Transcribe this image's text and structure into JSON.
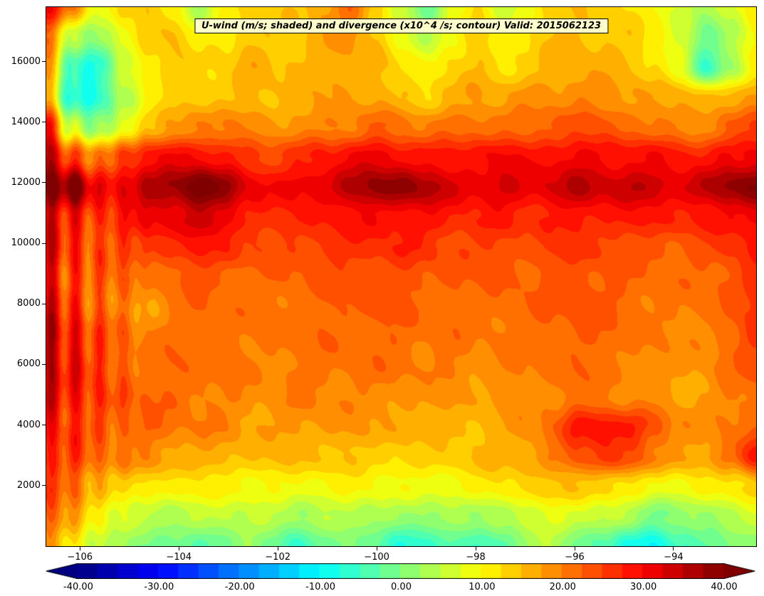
{
  "figure": {
    "background": "#ffffff",
    "title_box_bg": "#ffffcc",
    "axis_color": "#000000"
  },
  "chart_data": {
    "type": "heatmap",
    "title": "U-wind (m/s; shaded) and divergence (x10^4 /s; contour) Valid: 2015062123",
    "shaded_variable": "U-wind (m/s)",
    "contour_variable": "divergence (x10^4 /s)",
    "valid_time": "2015062123",
    "xlabel": "",
    "ylabel": "",
    "grid": false,
    "x_axis": {
      "min": -106.68,
      "max": -92.33,
      "ticks": [
        {
          "value": -106,
          "label": "−106"
        },
        {
          "value": -104,
          "label": "−104"
        },
        {
          "value": -102,
          "label": "−102"
        },
        {
          "value": -100,
          "label": "−100"
        },
        {
          "value": -98,
          "label": "−98"
        },
        {
          "value": -96,
          "label": "−96"
        },
        {
          "value": -94,
          "label": "−94"
        }
      ]
    },
    "y_axis": {
      "min": 0,
      "max": 17800,
      "ticks": [
        {
          "value": 2000,
          "label": "2000"
        },
        {
          "value": 4000,
          "label": "4000"
        },
        {
          "value": 6000,
          "label": "6000"
        },
        {
          "value": 8000,
          "label": "8000"
        },
        {
          "value": 10000,
          "label": "10000"
        },
        {
          "value": 12000,
          "label": "12000"
        },
        {
          "value": 14000,
          "label": "14000"
        },
        {
          "value": 16000,
          "label": "16000"
        }
      ]
    },
    "colormap": {
      "name": "jet",
      "level_min": -40,
      "level_max": 40,
      "level_step": 2.5,
      "extend": "both",
      "below_color": "#00007f",
      "above_color": "#7f0000"
    },
    "colorbar": {
      "orientation": "horizontal",
      "ticks": [
        {
          "value": -40,
          "label": "-40.00"
        },
        {
          "value": -30,
          "label": "-30.00"
        },
        {
          "value": -20,
          "label": "-20.00"
        },
        {
          "value": -10,
          "label": "-10.00"
        },
        {
          "value": 0,
          "label": "0.00"
        },
        {
          "value": 10,
          "label": "10.00"
        },
        {
          "value": 20,
          "label": "20.00"
        },
        {
          "value": 30,
          "label": "30.00"
        },
        {
          "value": 40,
          "label": "40.00"
        }
      ]
    },
    "field": {
      "units": "m/s",
      "nx": 29,
      "ny": 19,
      "x_min": -106.68,
      "x_max": -92.33,
      "y_min": 0,
      "y_max": 17800,
      "rows_order": "bottom-to-top",
      "values": [
        [
          18,
          12,
          6,
          2,
          0,
          -2,
          -4,
          0,
          2,
          -1,
          -6,
          -2,
          0,
          -3,
          -8,
          -5,
          -2,
          -6,
          -3,
          2,
          4,
          0,
          -4,
          -8,
          -10,
          -6,
          -3,
          0,
          2
        ],
        [
          22,
          18,
          10,
          6,
          5,
          4,
          5,
          6,
          5,
          4,
          3,
          4,
          5,
          4,
          2,
          2,
          3,
          2,
          4,
          7,
          8,
          7,
          5,
          3,
          0,
          1,
          3,
          5,
          6
        ],
        [
          24,
          22,
          17,
          13,
          12,
          11,
          11,
          11,
          10,
          10,
          10,
          10,
          10,
          10,
          9,
          9,
          10,
          11,
          12,
          13,
          14,
          15,
          14,
          12,
          10,
          9,
          10,
          12,
          14
        ],
        [
          26,
          25,
          22,
          20,
          19,
          18,
          17,
          16,
          15,
          15,
          15,
          15,
          15,
          14,
          14,
          13,
          14,
          15,
          16,
          18,
          20,
          24,
          26,
          24,
          20,
          18,
          17,
          22,
          30
        ],
        [
          28,
          26,
          24,
          23,
          22,
          21,
          20,
          19,
          18,
          18,
          18,
          18,
          18,
          17,
          17,
          16,
          16,
          16,
          17,
          19,
          22,
          28,
          30,
          28,
          24,
          20,
          18,
          20,
          22
        ],
        [
          33,
          28,
          25,
          24,
          22,
          22,
          21,
          20,
          19,
          19,
          20,
          20,
          20,
          19,
          19,
          18,
          18,
          17,
          18,
          19,
          20,
          21,
          20,
          19,
          18,
          17,
          18,
          20,
          22
        ],
        [
          32,
          30,
          25,
          23,
          21,
          22,
          22,
          21,
          20,
          20,
          21,
          21,
          21,
          21,
          21,
          20,
          20,
          19,
          20,
          20,
          21,
          22,
          21,
          20,
          19,
          18,
          19,
          21,
          23
        ],
        [
          33,
          30,
          24,
          22,
          20,
          21,
          22,
          21,
          20,
          21,
          21,
          22,
          22,
          22,
          22,
          21,
          21,
          20,
          21,
          21,
          22,
          23,
          22,
          21,
          20,
          19,
          20,
          22,
          26
        ],
        [
          30,
          26,
          22,
          20,
          18,
          20,
          22,
          22,
          21,
          21,
          22,
          22,
          23,
          23,
          23,
          22,
          22,
          21,
          22,
          22,
          23,
          24,
          23,
          22,
          21,
          20,
          21,
          23,
          25
        ],
        [
          28,
          25,
          23,
          22,
          20,
          22,
          24,
          23,
          22,
          22,
          23,
          23,
          24,
          24,
          24,
          23,
          23,
          22,
          23,
          22,
          23,
          24,
          23,
          22,
          22,
          21,
          22,
          24,
          26
        ],
        [
          30,
          26,
          24,
          25,
          26,
          27,
          28,
          27,
          25,
          24,
          25,
          26,
          26,
          27,
          27,
          26,
          25,
          25,
          25,
          24,
          25,
          26,
          25,
          24,
          24,
          23,
          24,
          26,
          28
        ],
        [
          32,
          28,
          26,
          28,
          30,
          32,
          34,
          32,
          28,
          26,
          27,
          28,
          29,
          30,
          30,
          29,
          28,
          27,
          28,
          27,
          28,
          29,
          28,
          28,
          28,
          27,
          28,
          30,
          32
        ],
        [
          38,
          42,
          30,
          32,
          36,
          38,
          43,
          38,
          32,
          30,
          31,
          33,
          36,
          38,
          39,
          36,
          33,
          32,
          33,
          32,
          33,
          35,
          34,
          35,
          34,
          33,
          35,
          38,
          40
        ],
        [
          35,
          25,
          20,
          25,
          28,
          30,
          30,
          28,
          26,
          25,
          26,
          28,
          30,
          31,
          30,
          29,
          28,
          29,
          30,
          29,
          30,
          31,
          30,
          30,
          29,
          28,
          28,
          30,
          32
        ],
        [
          30,
          5,
          0,
          8,
          15,
          18,
          20,
          20,
          19,
          18,
          19,
          20,
          21,
          22,
          21,
          20,
          21,
          22,
          22,
          22,
          23,
          24,
          23,
          22,
          21,
          20,
          20,
          22,
          25
        ],
        [
          15,
          -6,
          -8,
          3,
          10,
          13,
          14,
          15,
          16,
          15,
          16,
          17,
          17,
          17,
          15,
          14,
          16,
          17,
          17,
          18,
          19,
          20,
          19,
          18,
          17,
          16,
          15,
          16,
          18
        ],
        [
          18,
          -6,
          -8,
          5,
          12,
          15,
          13,
          14,
          16,
          15,
          16,
          17,
          17,
          16,
          12,
          10,
          13,
          15,
          13,
          14,
          16,
          17,
          16,
          15,
          13,
          8,
          -5,
          2,
          10
        ],
        [
          22,
          5,
          2,
          8,
          14,
          15,
          10,
          12,
          15,
          14,
          15,
          17,
          18,
          15,
          8,
          5,
          10,
          14,
          10,
          12,
          15,
          16,
          15,
          14,
          12,
          6,
          -2,
          4,
          10
        ],
        [
          30,
          20,
          8,
          12,
          15,
          12,
          3,
          10,
          14,
          13,
          15,
          18,
          22,
          15,
          5,
          -3,
          8,
          12,
          6,
          10,
          14,
          15,
          13,
          12,
          10,
          8,
          3,
          8,
          12
        ]
      ]
    }
  }
}
